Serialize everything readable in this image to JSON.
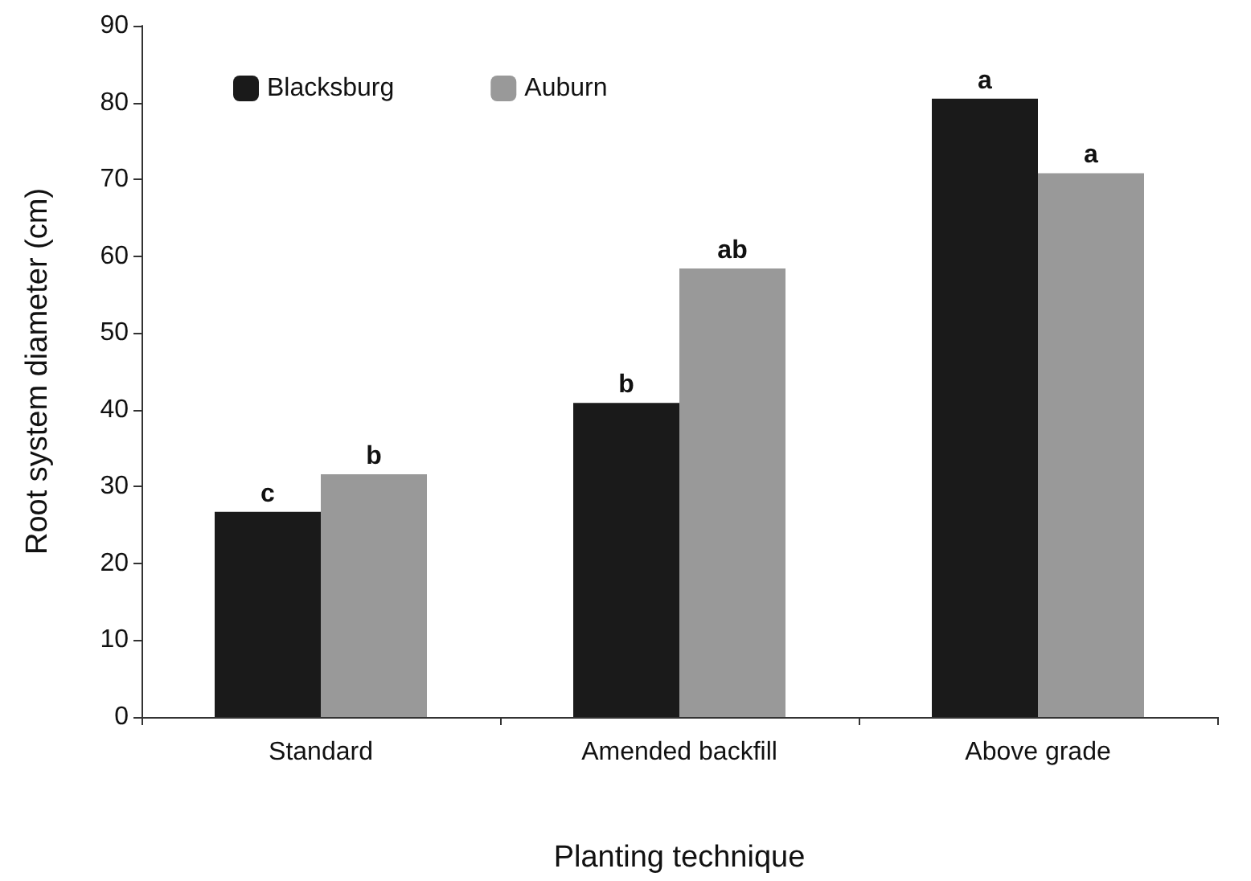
{
  "chart_data": {
    "type": "bar",
    "xlabel": "Planting technique",
    "ylabel": "Root system diameter (cm)",
    "categories": [
      "Standard",
      "Amended backfill",
      "Above grade"
    ],
    "series": [
      {
        "name": "Blacksburg",
        "color": "#1a1a1a",
        "values": [
          26.7,
          40.9,
          80.5
        ],
        "value_labels": [
          "c",
          "b",
          "a"
        ]
      },
      {
        "name": "Auburn",
        "color": "#999999",
        "values": [
          31.6,
          58.4,
          70.8
        ],
        "value_labels": [
          "b",
          "ab",
          "a"
        ]
      }
    ],
    "ylim": [
      0,
      90
    ],
    "yticks": [
      0,
      10,
      20,
      30,
      40,
      50,
      60,
      70,
      80,
      90
    ],
    "grid": false,
    "legend": "top left"
  }
}
